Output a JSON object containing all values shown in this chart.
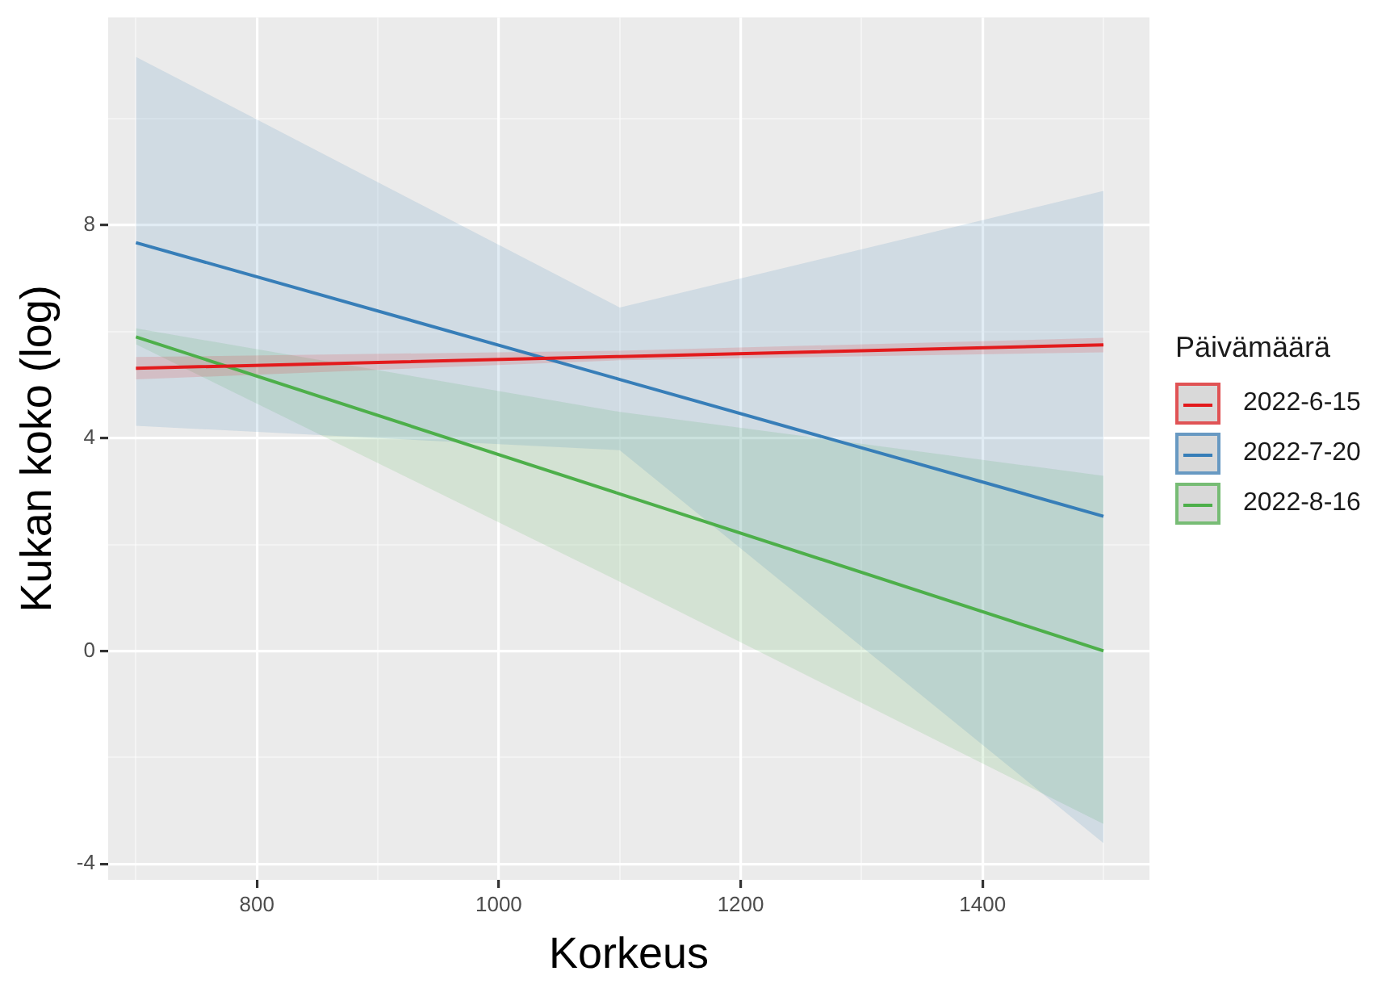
{
  "chart_data": {
    "type": "line",
    "xlabel": "Korkeus",
    "ylabel": "Kukan koko (log)",
    "legend_title": "Päivämäärä",
    "legend": "right",
    "grid": true,
    "marker": "none",
    "line_style": "solid",
    "xlim": [
      677,
      1538
    ],
    "xticks": [
      {
        "value": 700,
        "label": null
      },
      800,
      {
        "value": 900,
        "label": null
      },
      1000,
      {
        "value": 1100,
        "label": null
      },
      1200,
      {
        "value": 1300,
        "label": null
      },
      1400,
      {
        "value": 1500,
        "label": null
      }
    ],
    "ylim": [
      -4.3,
      11.9
    ],
    "yticks": [
      -4,
      {
        "value": -2,
        "label": null
      },
      0,
      {
        "value": 2,
        "label": null
      },
      4,
      {
        "value": 6,
        "label": null
      },
      8,
      {
        "value": 10,
        "label": null
      }
    ],
    "series": [
      {
        "name": "2022-6-15",
        "color": "#e31a1c",
        "x": [
          700,
          1100,
          1500
        ],
        "values": [
          5.31,
          5.53,
          5.75
        ],
        "lower": [
          5.1,
          5.46,
          5.61
        ],
        "upper": [
          5.52,
          5.64,
          5.88
        ]
      },
      {
        "name": "2022-7-20",
        "color": "#377eb8",
        "x": [
          700,
          1100,
          1500
        ],
        "values": [
          7.67,
          5.1,
          2.53
        ],
        "lower": [
          4.23,
          3.77,
          -3.61
        ],
        "upper": [
          11.16,
          6.45,
          8.64
        ]
      },
      {
        "name": "2022-8-16",
        "color": "#4daf4a",
        "x": [
          700,
          1100,
          1500
        ],
        "values": [
          5.9,
          2.95,
          0
        ],
        "lower": [
          5.76,
          1.3,
          -3.25
        ],
        "upper": [
          6.06,
          4.49,
          3.29
        ]
      }
    ]
  }
}
